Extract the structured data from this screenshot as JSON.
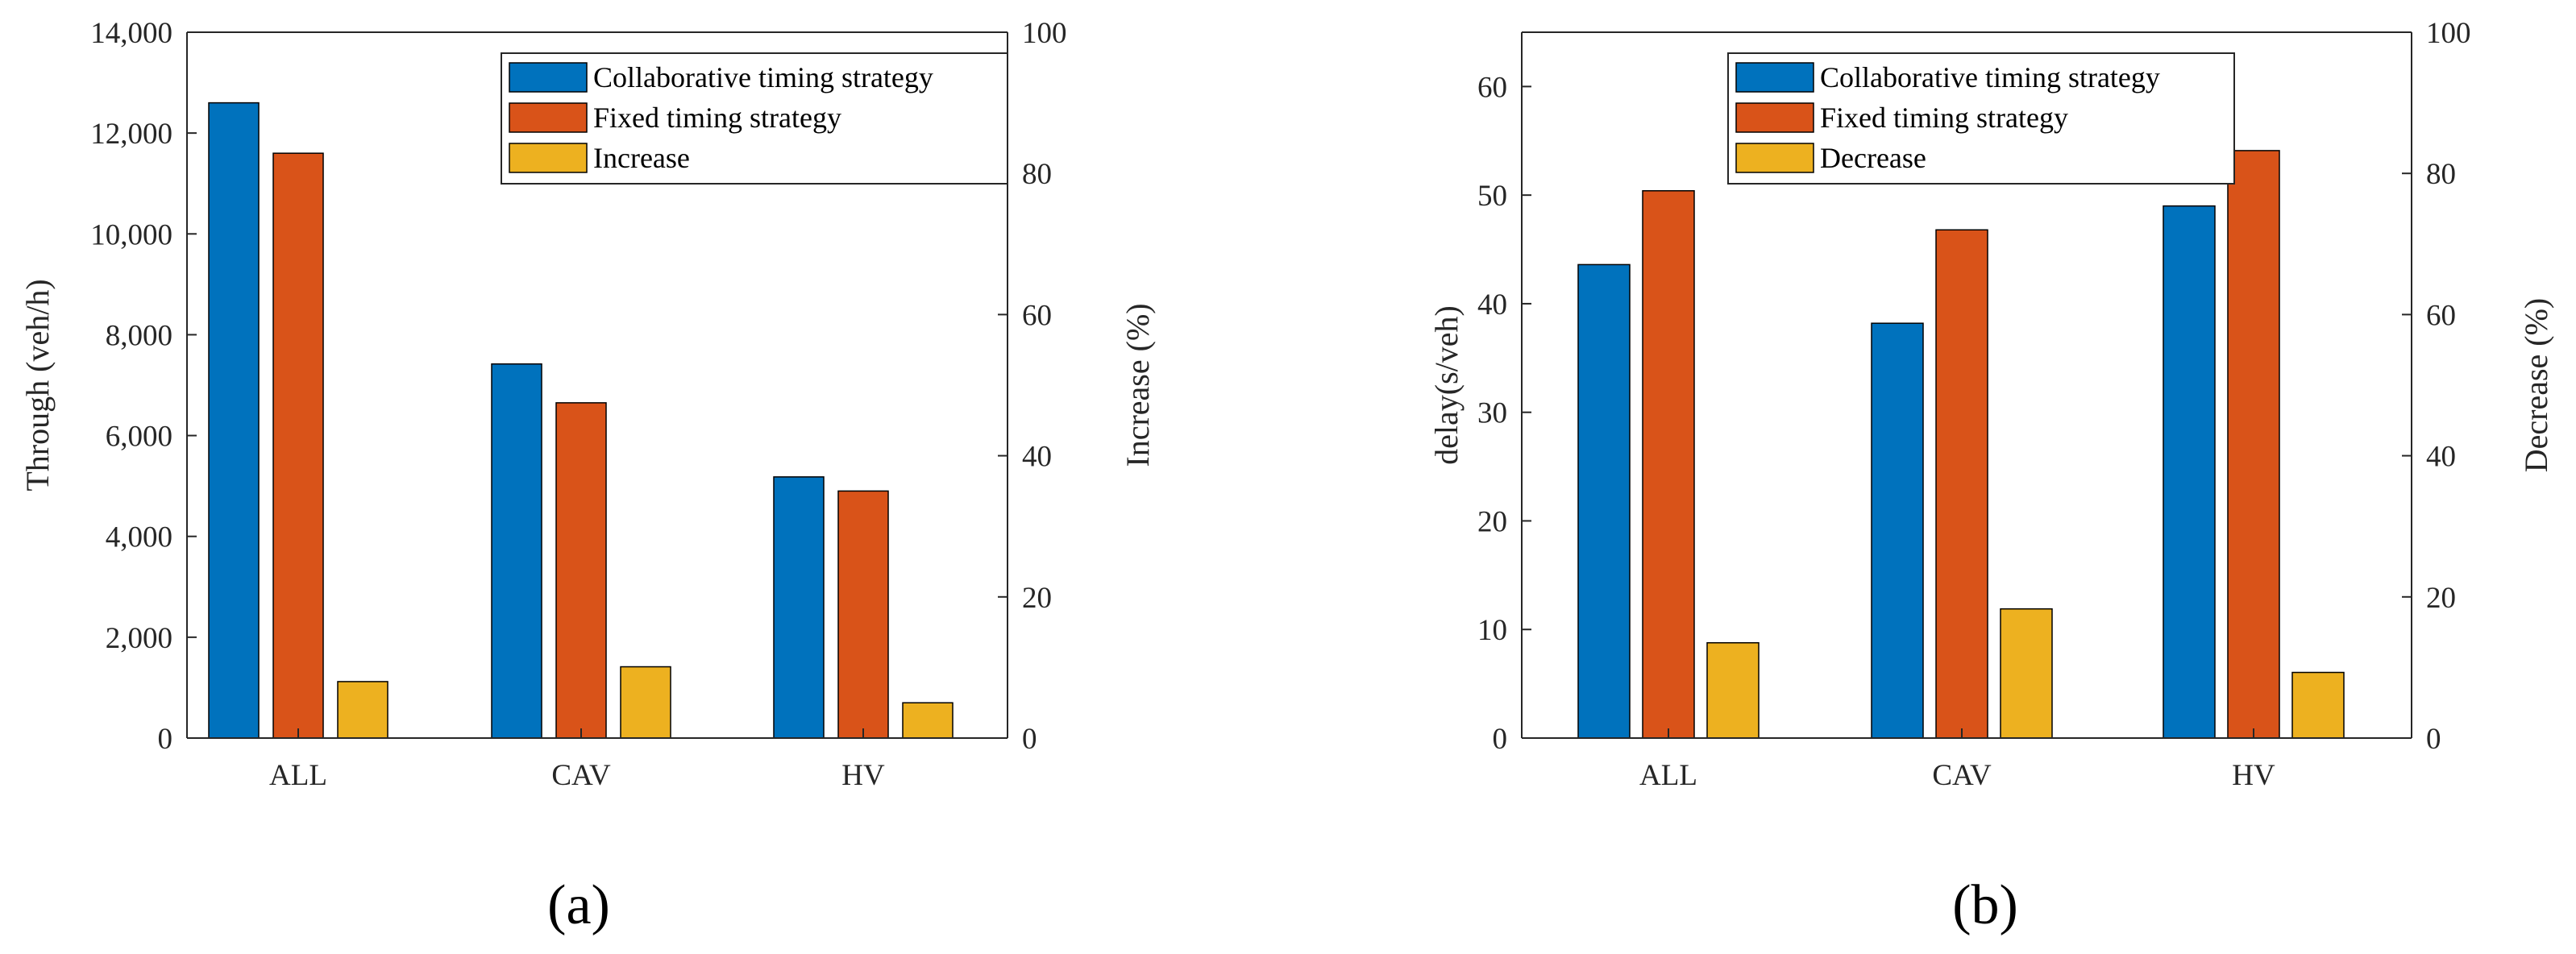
{
  "colors": {
    "series": [
      "#0072BD",
      "#D95319",
      "#EDB120"
    ],
    "bar_edge": "#000000",
    "axis": "#262626"
  },
  "chart_data": [
    {
      "type": "bar",
      "panel_label": "(a)",
      "categories": [
        "ALL",
        "CAV",
        "HV"
      ],
      "series": [
        {
          "name": "Collaborative timing strategy",
          "axis": "left",
          "values": [
            12600,
            7420,
            5180
          ]
        },
        {
          "name": "Fixed timing strategy",
          "axis": "left",
          "values": [
            11600,
            6650,
            4900
          ]
        },
        {
          "name": "Increase",
          "axis": "right",
          "values": [
            8.0,
            10.1,
            5.0
          ]
        }
      ],
      "ylabel": "Through (veh/h)",
      "ylabel_right": "Increase (%)",
      "ylim": [
        0,
        14000
      ],
      "ylim_right": [
        0,
        100
      ],
      "yticks": [
        "0",
        "2,000",
        "4,000",
        "6,000",
        "8,000",
        "10,000",
        "12,000",
        "14,000"
      ],
      "yticks_right": [
        "0",
        "20",
        "40",
        "60",
        "80",
        "100"
      ],
      "legend_position": "top-right"
    },
    {
      "type": "bar",
      "panel_label": "(b)",
      "categories": [
        "ALL",
        "CAV",
        "HV"
      ],
      "series": [
        {
          "name": "Collaborative timing strategy",
          "axis": "left",
          "values": [
            43.6,
            38.2,
            49.0
          ]
        },
        {
          "name": "Fixed timing strategy",
          "axis": "left",
          "values": [
            50.4,
            46.8,
            54.1
          ]
        },
        {
          "name": "Decrease",
          "axis": "right",
          "values": [
            13.5,
            18.3,
            9.3
          ]
        }
      ],
      "ylabel": "delay(s/veh)",
      "ylabel_right": "Decrease (%)",
      "ylim": [
        0,
        65
      ],
      "ylim_right": [
        0,
        100
      ],
      "yticks": [
        "0",
        "10",
        "20",
        "30",
        "40",
        "50",
        "60"
      ],
      "yticks_right": [
        "0",
        "20",
        "40",
        "60",
        "80",
        "100"
      ],
      "legend_position": "top-right"
    }
  ]
}
